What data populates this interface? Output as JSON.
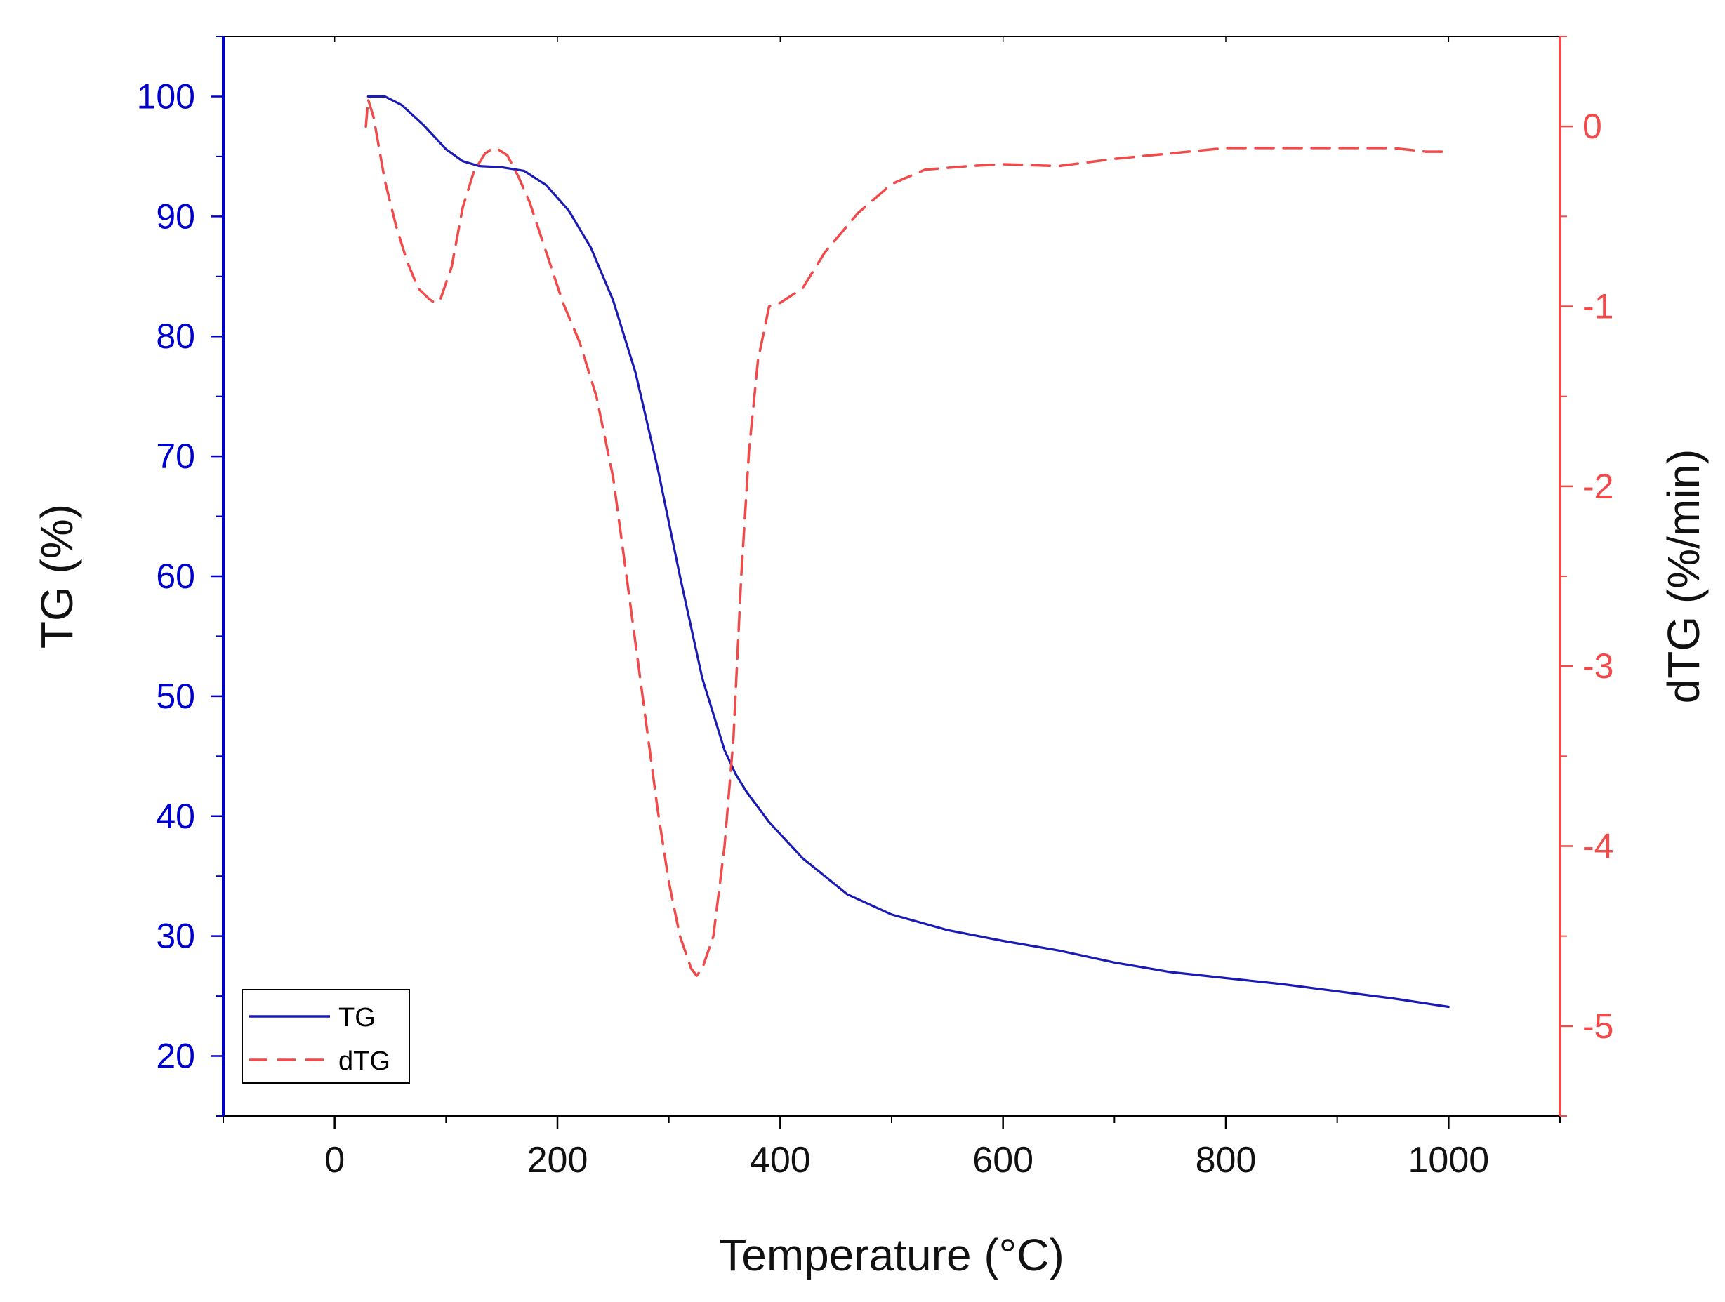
{
  "chart_data": {
    "type": "line",
    "title": "",
    "xlabel": "Temperature (°C)",
    "ylabel": "TG (%)",
    "y2label": "dTG (%/min)",
    "xlim": [
      -100,
      1100
    ],
    "ylim": [
      15,
      105
    ],
    "y2lim": [
      -5.5,
      0.5
    ],
    "x_ticks": [
      0,
      200,
      400,
      600,
      800,
      1000
    ],
    "x_tick_labels": [
      "0",
      "200",
      "400",
      "600",
      "800",
      "1000"
    ],
    "y_ticks": [
      20,
      30,
      40,
      50,
      60,
      70,
      80,
      90,
      100
    ],
    "y_tick_labels": [
      "20",
      "30",
      "40",
      "50",
      "60",
      "70",
      "80",
      "90",
      "100"
    ],
    "y2_ticks": [
      0,
      -1,
      -2,
      -3,
      -4,
      -5
    ],
    "y2_tick_labels": [
      "0",
      "-1",
      "-2",
      "-3",
      "-4",
      "-5"
    ],
    "grid": false,
    "legend_position": "bottom-left",
    "colors": {
      "tg": "#1a1ab5",
      "dtg": "#f04a4a",
      "left_axis": "#0000cc",
      "right_axis": "#f04a4a",
      "frame": "#000000"
    },
    "series": [
      {
        "name": "TG",
        "axis": "left",
        "style": "solid",
        "x": [
          30,
          45,
          60,
          80,
          100,
          115,
          130,
          150,
          170,
          190,
          210,
          230,
          250,
          270,
          290,
          310,
          330,
          350,
          360,
          370,
          390,
          420,
          460,
          500,
          550,
          600,
          650,
          700,
          750,
          800,
          850,
          900,
          950,
          1000
        ],
        "y": [
          100,
          100,
          99.3,
          97.6,
          95.6,
          94.6,
          94.2,
          94.1,
          93.8,
          92.6,
          90.5,
          87.4,
          83.0,
          77.0,
          69.0,
          60.0,
          51.5,
          45.5,
          43.5,
          42.0,
          39.5,
          36.5,
          33.5,
          31.8,
          30.5,
          29.6,
          28.8,
          27.8,
          27.0,
          26.5,
          26.0,
          25.4,
          24.8,
          24.1
        ]
      },
      {
        "name": "dTG",
        "axis": "right",
        "style": "dashed",
        "x": [
          28,
          30,
          35,
          45,
          55,
          65,
          75,
          85,
          90,
          95,
          105,
          115,
          125,
          135,
          140,
          145,
          155,
          165,
          175,
          190,
          205,
          220,
          235,
          250,
          262,
          275,
          290,
          300,
          310,
          320,
          325,
          330,
          340,
          350,
          358,
          365,
          372,
          380,
          390,
          400,
          420,
          440,
          470,
          500,
          530,
          570,
          600,
          650,
          700,
          750,
          800,
          850,
          900,
          950,
          980,
          1000
        ],
        "y": [
          0.0,
          0.15,
          0.05,
          -0.3,
          -0.55,
          -0.75,
          -0.9,
          -0.96,
          -0.98,
          -0.96,
          -0.78,
          -0.45,
          -0.25,
          -0.15,
          -0.13,
          -0.12,
          -0.16,
          -0.28,
          -0.42,
          -0.7,
          -0.98,
          -1.2,
          -1.5,
          -1.95,
          -2.5,
          -3.1,
          -3.8,
          -4.2,
          -4.5,
          -4.68,
          -4.72,
          -4.68,
          -4.5,
          -4.0,
          -3.4,
          -2.5,
          -1.8,
          -1.3,
          -1.0,
          -0.98,
          -0.9,
          -0.7,
          -0.48,
          -0.32,
          -0.24,
          -0.22,
          -0.21,
          -0.22,
          -0.18,
          -0.15,
          -0.12,
          -0.12,
          -0.12,
          -0.12,
          -0.14,
          -0.14
        ]
      }
    ]
  }
}
